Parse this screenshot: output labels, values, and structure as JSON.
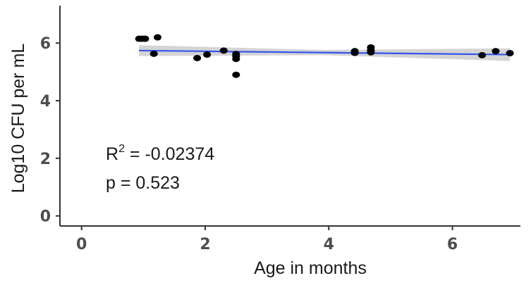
{
  "chart_data": {
    "type": "scatter",
    "xlabel": "Age in months",
    "ylabel": "Log10 CFU per mL",
    "xlim": [
      -0.35,
      7.1
    ],
    "ylim": [
      -0.35,
      7.3
    ],
    "xticks": [
      0,
      2,
      4,
      6
    ],
    "yticks": [
      0,
      2,
      4,
      6
    ],
    "grid": false,
    "points": [
      {
        "x": 0.93,
        "y": 6.15
      },
      {
        "x": 0.98,
        "y": 6.15
      },
      {
        "x": 1.03,
        "y": 6.15
      },
      {
        "x": 1.17,
        "y": 5.63
      },
      {
        "x": 1.23,
        "y": 6.2
      },
      {
        "x": 1.87,
        "y": 5.48
      },
      {
        "x": 2.03,
        "y": 5.6
      },
      {
        "x": 2.3,
        "y": 5.74
      },
      {
        "x": 2.5,
        "y": 5.62
      },
      {
        "x": 2.5,
        "y": 5.55
      },
      {
        "x": 2.5,
        "y": 5.45
      },
      {
        "x": 2.5,
        "y": 4.9
      },
      {
        "x": 4.42,
        "y": 5.72
      },
      {
        "x": 4.42,
        "y": 5.66
      },
      {
        "x": 4.68,
        "y": 5.85
      },
      {
        "x": 4.68,
        "y": 5.75
      },
      {
        "x": 4.68,
        "y": 5.68
      },
      {
        "x": 6.48,
        "y": 5.58
      },
      {
        "x": 6.7,
        "y": 5.72
      },
      {
        "x": 6.93,
        "y": 5.65
      }
    ],
    "fit": {
      "x0": 0.93,
      "y0": 5.74,
      "x1": 6.93,
      "y1": 5.6
    },
    "confidence_band": {
      "low0": 5.55,
      "high0": 5.93,
      "lowmid": 5.58,
      "highmid": 5.76,
      "low1": 5.38,
      "high1": 5.82
    },
    "annotation": {
      "r2_base": "R",
      "r2_sup": "2",
      "r2_value": " = -0.02374",
      "p_text": "p = 0.523"
    },
    "colors": {
      "points": "#000000",
      "fit": "#3355ee",
      "band": "#cccccc",
      "axis": "#333333",
      "tick_label": "#4d4d4d"
    }
  }
}
